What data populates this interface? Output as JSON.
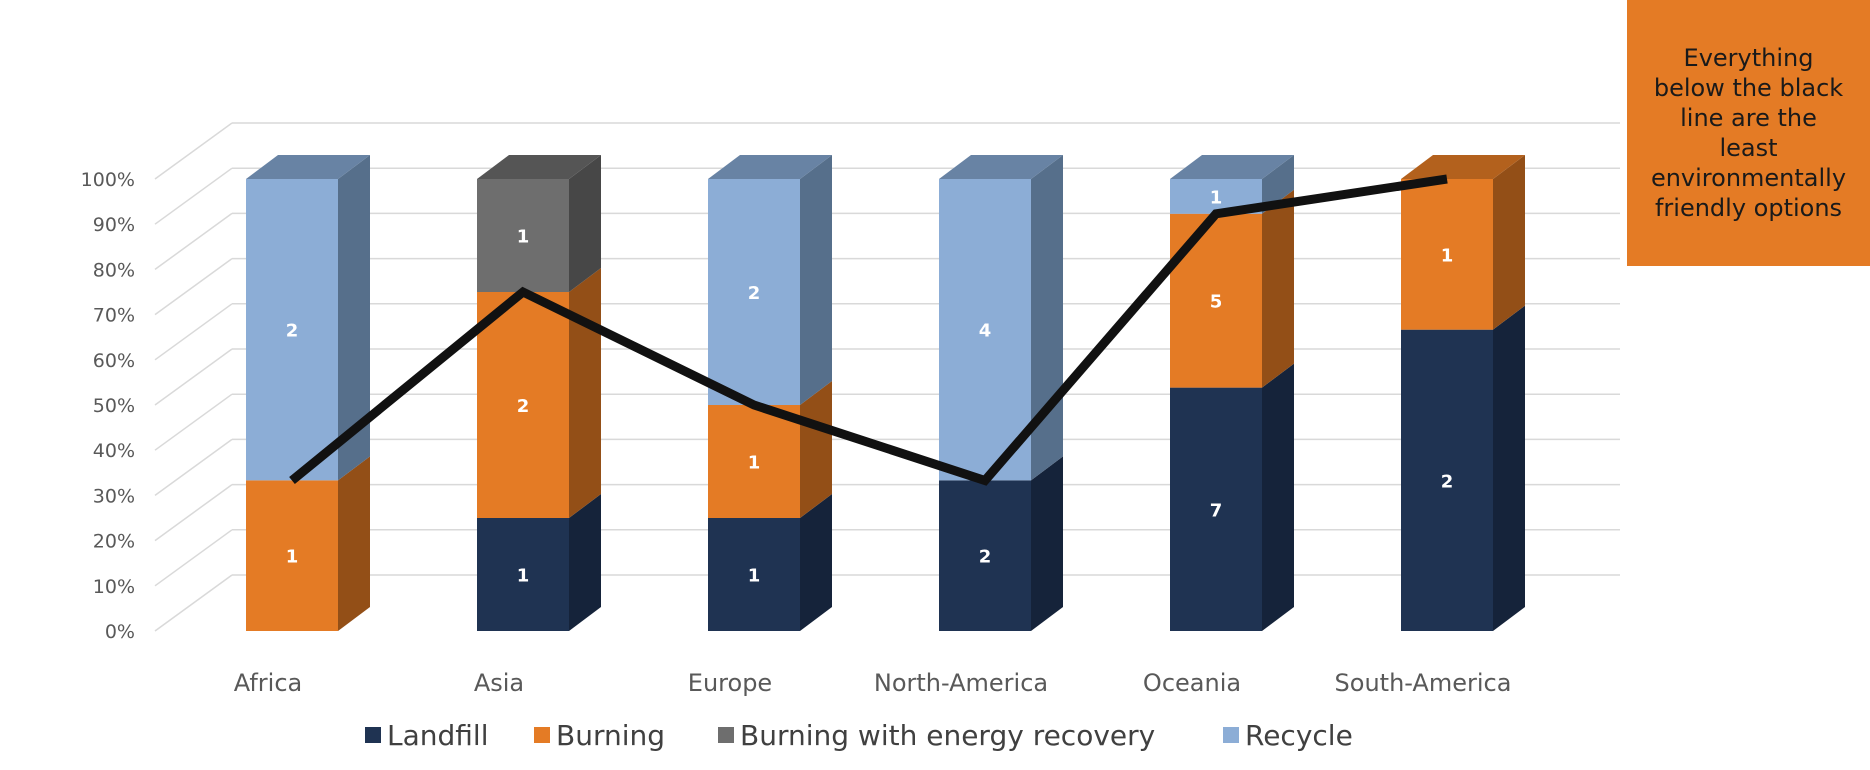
{
  "chart_data": {
    "type": "bar",
    "subtype": "stacked-100-percent-3d",
    "categories": [
      "Africa",
      "Asia",
      "Europe",
      "North-America",
      "Oceania",
      "South-America"
    ],
    "series": [
      {
        "name": "Landfill",
        "color": "#1f3352",
        "side": "#15233a",
        "top": "#2b4163",
        "values": [
          0,
          1,
          1,
          2,
          7,
          2
        ]
      },
      {
        "name": "Burning",
        "color": "#e47b25",
        "side": "#934f17",
        "top": "#b3611d",
        "values": [
          1,
          2,
          1,
          0,
          5,
          1
        ]
      },
      {
        "name": "Burning with energy recovery",
        "color": "#6e6e6e",
        "side": "#474747",
        "top": "#555555",
        "values": [
          0,
          1,
          0,
          0,
          0,
          0
        ]
      },
      {
        "name": "Recycle",
        "color": "#8cadd6",
        "side": "#566f8b",
        "top": "#6883a4",
        "values": [
          2,
          0,
          2,
          4,
          1,
          0
        ]
      }
    ],
    "y_tick_labels": [
      "0%",
      "10%",
      "20%",
      "30%",
      "40%",
      "50%",
      "60%",
      "70%",
      "80%",
      "90%",
      "100%"
    ],
    "ylim": [
      0,
      100
    ],
    "grid": true,
    "legend_position": "bottom",
    "line_overlay": {
      "color": "#111111",
      "values_percent": [
        33.3,
        75,
        50,
        33.3,
        92.3,
        100
      ]
    },
    "annotation": {
      "lines": [
        "Everything",
        "below the black",
        "line are the",
        "least",
        "environmentally",
        "friendly options"
      ],
      "background": "#e47b25"
    }
  }
}
